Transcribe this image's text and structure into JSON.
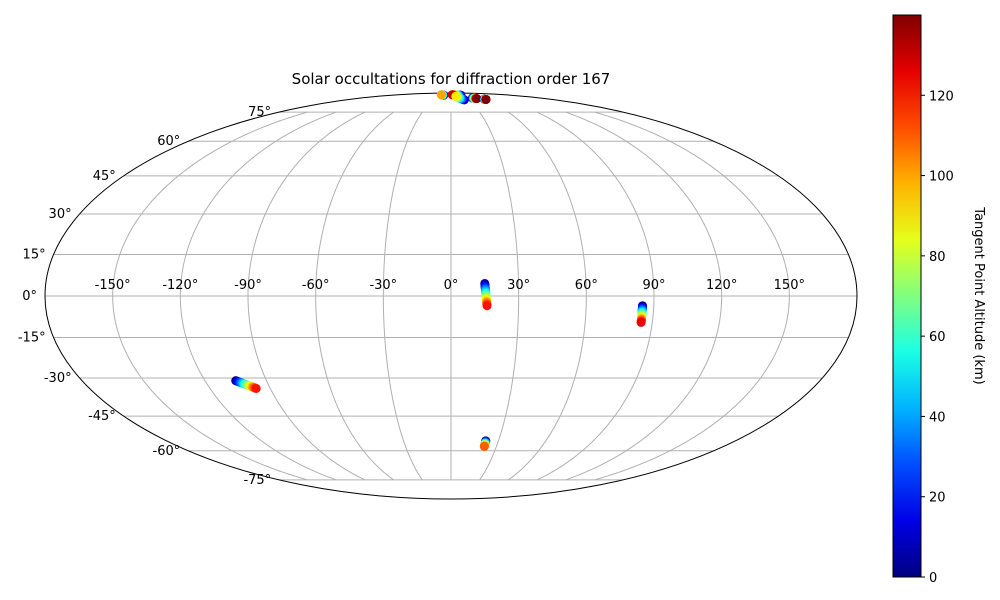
{
  "chart_data": {
    "type": "scatter",
    "projection": "mollweide",
    "title": "Solar occultations for diffraction order 167",
    "x_tick_labels": [
      "-150°",
      "-120°",
      "-90°",
      "-60°",
      "-30°",
      "0°",
      "30°",
      "60°",
      "90°",
      "120°",
      "150°"
    ],
    "x_ticks": [
      -150,
      -120,
      -90,
      -60,
      -30,
      0,
      30,
      60,
      90,
      120,
      150
    ],
    "y_tick_labels": [
      "-75°",
      "-60°",
      "-45°",
      "-30°",
      "-15°",
      "0°",
      "15°",
      "30°",
      "45°",
      "60°",
      "75°"
    ],
    "y_ticks": [
      -75,
      -60,
      -45,
      -30,
      -15,
      0,
      15,
      30,
      45,
      60,
      75
    ],
    "grid": true,
    "colormap": "jet",
    "colorbar": {
      "label": "Tangent Point Altitude (km)",
      "range": [
        0,
        140
      ],
      "tick_values": [
        0,
        20,
        40,
        60,
        80,
        100,
        120
      ],
      "tick_labels": [
        "0",
        "20",
        "40",
        "60",
        "80",
        "100",
        "120"
      ]
    },
    "tracks": [
      {
        "lon_start": -22,
        "lat_start": 87,
        "lon_end": -33,
        "lat_end": 87.5,
        "alt_start": 0,
        "alt_end": 100
      },
      {
        "lon_start": 30,
        "lat_start": 87,
        "lon_end": 4,
        "lat_end": 87.5,
        "alt_start": 0,
        "alt_end": 130
      },
      {
        "lon_start": 23,
        "lat_start": 83,
        "lon_end": 12,
        "lat_end": 86,
        "alt_start": 0,
        "alt_end": 90
      },
      {
        "lon_start": 43,
        "lat_start": 84.5,
        "lon_end": 49,
        "lat_end": 84,
        "alt_start": 0,
        "alt_end": 140
      },
      {
        "lon_start": 60,
        "lat_start": 83.5,
        "lon_end": 62,
        "lat_end": 83.3,
        "alt_start": 0,
        "alt_end": 140
      },
      {
        "lon_start": 15,
        "lat_start": 4.5,
        "lon_end": 16,
        "lat_end": -3.5,
        "alt_start": 0,
        "alt_end": 120
      },
      {
        "lon_start": 85,
        "lat_start": -3.5,
        "lon_end": 85,
        "lat_end": -9.5,
        "alt_start": 0,
        "alt_end": 125
      },
      {
        "lon_start": -105,
        "lat_start": -31,
        "lon_end": -97,
        "lat_end": -34,
        "alt_start": 0,
        "alt_end": 120
      },
      {
        "lon_start": 22,
        "lat_start": -55.5,
        "lon_end": 22,
        "lat_end": -58,
        "alt_start": 0,
        "alt_end": 110
      }
    ]
  }
}
